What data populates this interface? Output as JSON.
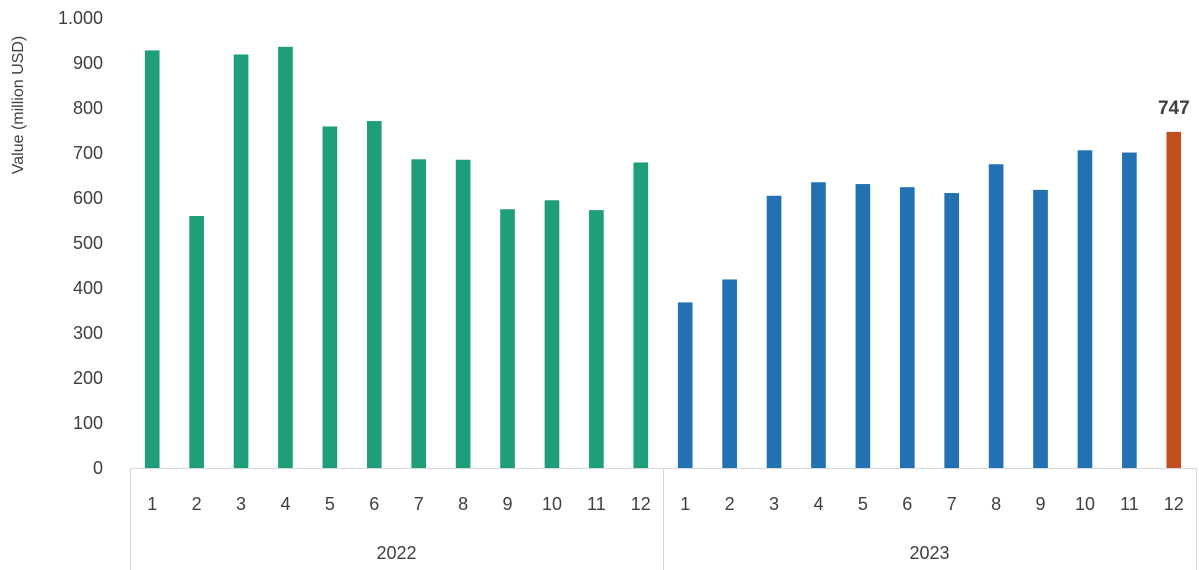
{
  "chart_data": {
    "type": "bar",
    "ylabel": "Value (million USD)",
    "ylim": [
      0,
      1000
    ],
    "yticks": [
      0,
      100,
      200,
      300,
      400,
      500,
      600,
      700,
      800,
      900,
      1000
    ],
    "ytick_labels": [
      "0",
      "100",
      "200",
      "300",
      "400",
      "500",
      "600",
      "700",
      "800",
      "900",
      "1.000"
    ],
    "grid": false,
    "groups": [
      {
        "label": "2022",
        "categories": [
          "1",
          "2",
          "3",
          "4",
          "5",
          "6",
          "7",
          "8",
          "9",
          "10",
          "11",
          "12"
        ],
        "values": [
          928,
          560,
          919,
          936,
          759,
          771,
          686,
          685,
          575,
          595,
          573,
          679
        ],
        "color": "#1f9e7a"
      },
      {
        "label": "2023",
        "categories": [
          "1",
          "2",
          "3",
          "4",
          "5",
          "6",
          "7",
          "8",
          "9",
          "10",
          "11",
          "12"
        ],
        "values": [
          368,
          419,
          605,
          635,
          631,
          624,
          611,
          675,
          618,
          706,
          701,
          747
        ],
        "color": "#2271b3"
      }
    ],
    "highlight": {
      "group": 1,
      "index": 11,
      "color": "#c0501f",
      "label": "747"
    }
  }
}
